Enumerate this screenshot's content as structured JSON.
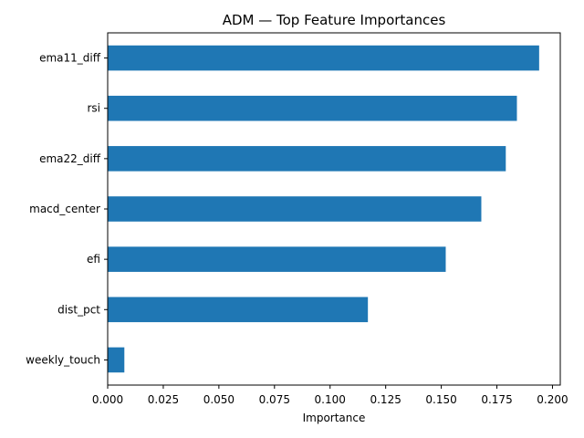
{
  "chart_data": {
    "type": "bar",
    "orientation": "horizontal",
    "title": "ADM — Top Feature Importances",
    "xlabel": "Importance",
    "ylabel": "",
    "categories": [
      "ema11_diff",
      "rsi",
      "ema22_diff",
      "macd_center",
      "efi",
      "dist_pct",
      "weekly_touch"
    ],
    "values": [
      0.194,
      0.184,
      0.179,
      0.168,
      0.152,
      0.117,
      0.0075
    ],
    "xlim": [
      0,
      0.2035
    ],
    "xticks": [
      0.0,
      0.025,
      0.05,
      0.075,
      0.1,
      0.125,
      0.15,
      0.175,
      0.2
    ],
    "xtick_labels": [
      "0.000",
      "0.025",
      "0.050",
      "0.075",
      "0.100",
      "0.125",
      "0.150",
      "0.175",
      "0.200"
    ],
    "grid": false,
    "legend": "none",
    "bar_color": "#1f77b4"
  }
}
